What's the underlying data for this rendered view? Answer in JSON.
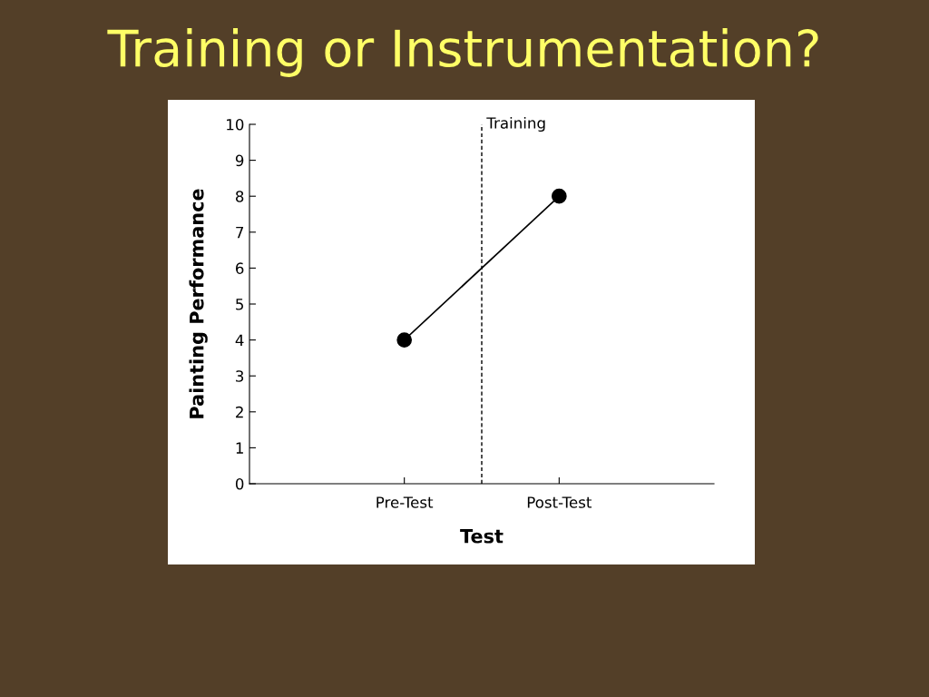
{
  "chart_data": {
    "type": "line",
    "title": "Training or Instrumentation?",
    "xlabel": "Test",
    "ylabel": "Painting Performance",
    "categories": [
      "Pre-Test",
      "Post-Test"
    ],
    "ylim": [
      0,
      10
    ],
    "yticks": [
      0,
      1,
      2,
      3,
      4,
      5,
      6,
      7,
      8,
      9,
      10
    ],
    "series": [
      {
        "color": "#000000",
        "values": [
          4,
          8
        ]
      }
    ],
    "marker": "circle",
    "line_style": "solid",
    "annotations": [
      "Training"
    ]
  }
}
